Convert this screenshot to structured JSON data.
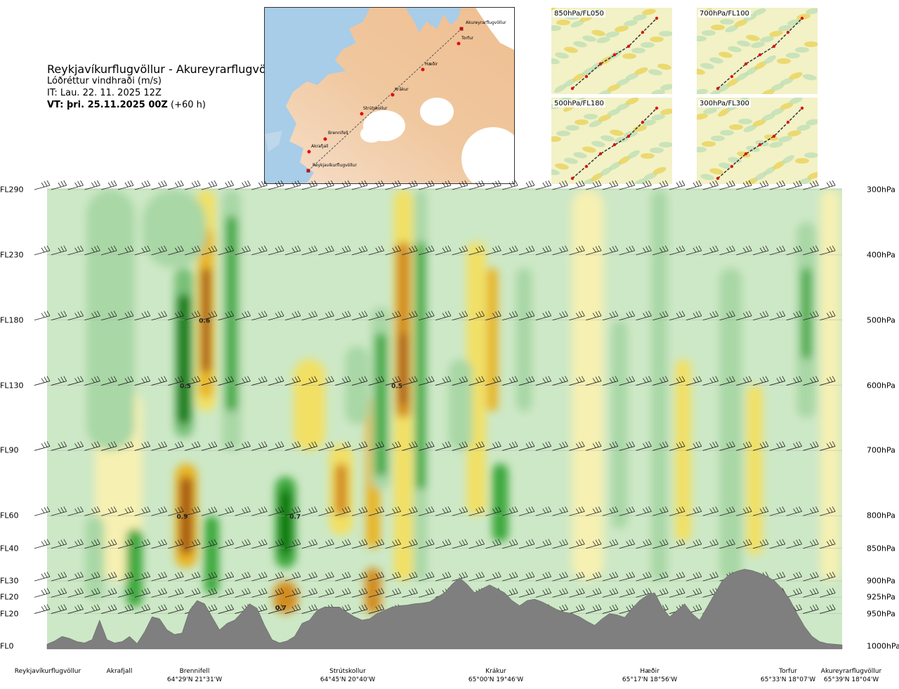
{
  "header": {
    "route": "Reykjavíkurflugvöllur - Akureyrarflugvöllur",
    "variable": "Lóðréttur vindhraði (m/s)",
    "it": "IT: Lau. 22. 11. 2025 12Z",
    "vt": "VT: þri. 25.11.2025 00Z",
    "vt_offset": "(+60 h)"
  },
  "map": {
    "waypoints": [
      {
        "name": "Akureyrarflugvöllur"
      },
      {
        "name": "Torfur"
      },
      {
        "name": "Hæðir"
      },
      {
        "name": "Krákur"
      },
      {
        "name": "Strútskollur"
      },
      {
        "name": "Brennifell"
      },
      {
        "name": "Akrafjall"
      },
      {
        "name": "Reykjavíkurflugvöllur"
      }
    ]
  },
  "thumbnails": [
    {
      "label": "850hPa/FL050"
    },
    {
      "label": "700hPa/FL100"
    },
    {
      "label": "500hPa/FL180"
    },
    {
      "label": "300hPa/FL300"
    }
  ],
  "chart_data": {
    "type": "heatmap",
    "levels": [
      {
        "fl": "FL290",
        "hpa": "300hPa",
        "value": 300
      },
      {
        "fl": "FL230",
        "hpa": "400hPa",
        "value": 400
      },
      {
        "fl": "FL180",
        "hpa": "500hPa",
        "value": 500
      },
      {
        "fl": "FL130",
        "hpa": "600hPa",
        "value": 600
      },
      {
        "fl": "FL90",
        "hpa": "700hPa",
        "value": 700
      },
      {
        "fl": "FL60",
        "hpa": "800hPa",
        "value": 800
      },
      {
        "fl": "FL40",
        "hpa": "850hPa",
        "value": 850
      },
      {
        "fl": "FL30",
        "hpa": "900hPa",
        "value": 900
      },
      {
        "fl": "FL20",
        "hpa": "925hPa",
        "value": 925
      },
      {
        "fl": "FL20",
        "hpa": "950hPa",
        "value": 950
      },
      {
        "fl": "FL0",
        "hpa": "1000hPa",
        "value": 1000
      }
    ],
    "ylim": [
      300,
      1000
    ],
    "locations": [
      {
        "name": "Reykjavíkurflugvöllur",
        "coord": "",
        "pos": 0.0
      },
      {
        "name": "Akrafjall",
        "coord": "",
        "pos": 0.091
      },
      {
        "name": "Brennifell",
        "coord": "64°29'N 21°31'W",
        "pos": 0.197
      },
      {
        "name": "Strútskollur",
        "coord": "64°45'N 20°40'W",
        "pos": 0.378
      },
      {
        "name": "Krákur",
        "coord": "65°00'N 19°46'W",
        "pos": 0.565
      },
      {
        "name": "Hæðir",
        "coord": "65°17'N 18°56'W",
        "pos": 0.745
      },
      {
        "name": "Torfur",
        "coord": "65°33'N 18°07'W",
        "pos": 0.935
      },
      {
        "name": "Akureyrarflugvöllur",
        "coord": "65°39'N 18°04'W",
        "pos": 0.98
      }
    ],
    "annotations": [
      {
        "text": "0.6",
        "pos": 0.198,
        "hpa": 500
      },
      {
        "text": "0.5",
        "pos": 0.174,
        "hpa": 600
      },
      {
        "text": "0.5",
        "pos": 0.44,
        "hpa": 600
      },
      {
        "text": "0.9",
        "pos": 0.17,
        "hpa": 800
      },
      {
        "text": "0.7",
        "pos": 0.312,
        "hpa": 800
      },
      {
        "text": "0.7",
        "pos": 0.294,
        "hpa": 940
      }
    ],
    "terrain_hpa": [
      997,
      992,
      985,
      988,
      993,
      995,
      990,
      960,
      990,
      995,
      993,
      985,
      996,
      978,
      955,
      958,
      975,
      982,
      980,
      945,
      930,
      935,
      955,
      975,
      965,
      960,
      948,
      935,
      942,
      968,
      990,
      995,
      992,
      985,
      965,
      960,
      945,
      940,
      940,
      940,
      948,
      955,
      960,
      958,
      950,
      945,
      940,
      938,
      937,
      935,
      934,
      932,
      925,
      918,
      905,
      895,
      905,
      918,
      912,
      906,
      912,
      918,
      930,
      938,
      930,
      928,
      932,
      938,
      944,
      948,
      950,
      955,
      962,
      968,
      958,
      950,
      952,
      956,
      942,
      930,
      922,
      918,
      940,
      955,
      945,
      935,
      950,
      960,
      940,
      920,
      900,
      890,
      885,
      882,
      884,
      888,
      893,
      900,
      912,
      928,
      950,
      970,
      985,
      993,
      996,
      997,
      998
    ],
    "vertical_velocity_colorscale": [
      {
        "value": -0.9,
        "color": "#0e7a0e"
      },
      {
        "value": -0.6,
        "color": "#3da83d"
      },
      {
        "value": -0.4,
        "color": "#78c078"
      },
      {
        "value": -0.2,
        "color": "#a9d7a6"
      },
      {
        "value": -0.05,
        "color": "#d5ecd0"
      },
      {
        "value": 0.0,
        "color": "#f6fbe9"
      },
      {
        "value": 0.05,
        "color": "#f6f0b2"
      },
      {
        "value": 0.2,
        "color": "#f2e065"
      },
      {
        "value": 0.4,
        "color": "#e8b526"
      },
      {
        "value": 0.6,
        "color": "#d38c1c"
      },
      {
        "value": 0.8,
        "color": "#a65716"
      },
      {
        "value": 1.0,
        "color": "#7a3310"
      }
    ],
    "colors": {
      "terrain": "#7f7f7f",
      "frame": "#cfcfcf"
    }
  }
}
